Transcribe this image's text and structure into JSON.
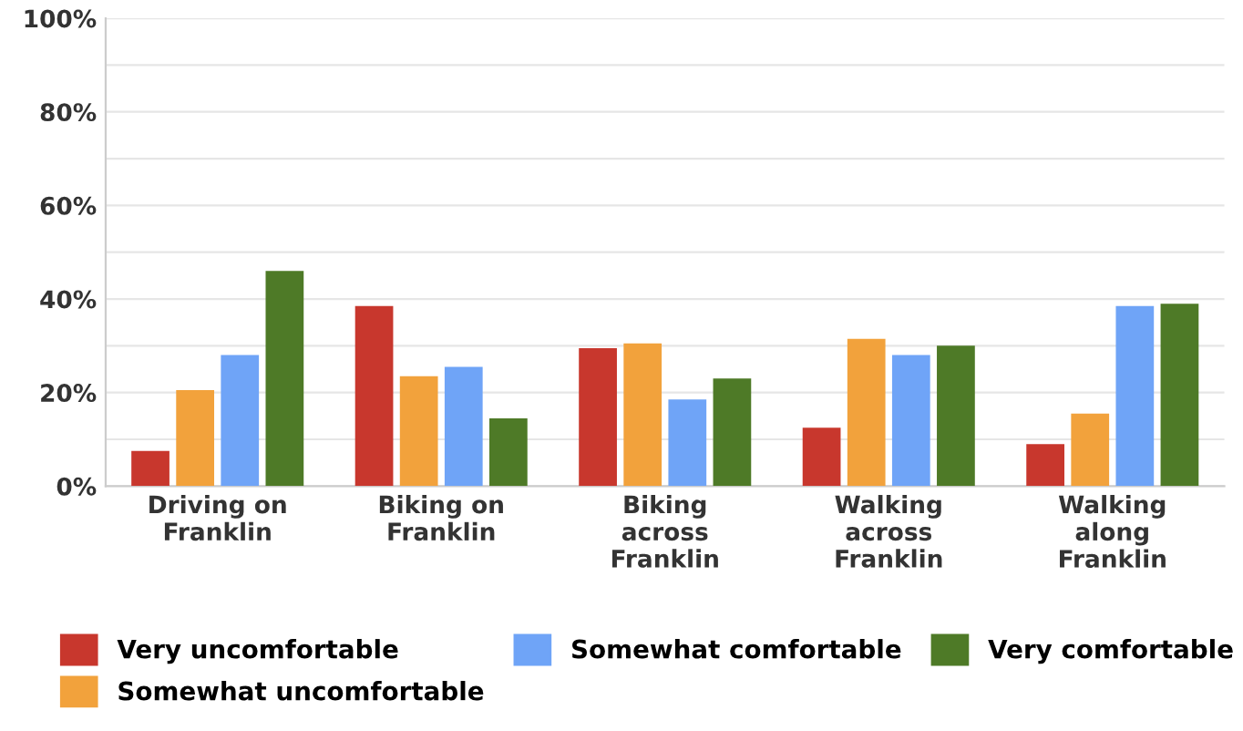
{
  "chart_data": {
    "type": "bar",
    "categories": [
      "Driving on\nFranklin",
      "Biking on\nFranklin",
      "Biking\nacross\nFranklin",
      "Walking\nacross\nFranklin",
      "Walking\nalong\nFranklin"
    ],
    "series": [
      {
        "name": "Very uncomfortable",
        "color": "#c8372d",
        "values": [
          7.5,
          38.5,
          29.5,
          12.5,
          9
        ]
      },
      {
        "name": "Somewhat uncomfortable",
        "color": "#f2a23c",
        "values": [
          20.5,
          23.5,
          30.5,
          31.5,
          15.5
        ]
      },
      {
        "name": "Somewhat comfortable",
        "color": "#6fa4f7",
        "values": [
          28,
          25.5,
          18.5,
          28,
          38.5
        ]
      },
      {
        "name": "Very comfortable",
        "color": "#4e7a27",
        "values": [
          46,
          14.5,
          23,
          30,
          39
        ]
      }
    ],
    "ylim": [
      0,
      100
    ],
    "yticks": [
      {
        "value": 0,
        "label": "0%"
      },
      {
        "value": 10,
        "label": null
      },
      {
        "value": 20,
        "label": "20%"
      },
      {
        "value": 30,
        "label": null
      },
      {
        "value": 40,
        "label": "40%"
      },
      {
        "value": 50,
        "label": null
      },
      {
        "value": 60,
        "label": "60%"
      },
      {
        "value": 70,
        "label": null
      },
      {
        "value": 80,
        "label": "80%"
      },
      {
        "value": 90,
        "label": null
      },
      {
        "value": 100,
        "label": "100%"
      }
    ],
    "grid": "y",
    "legend": "bottom"
  }
}
